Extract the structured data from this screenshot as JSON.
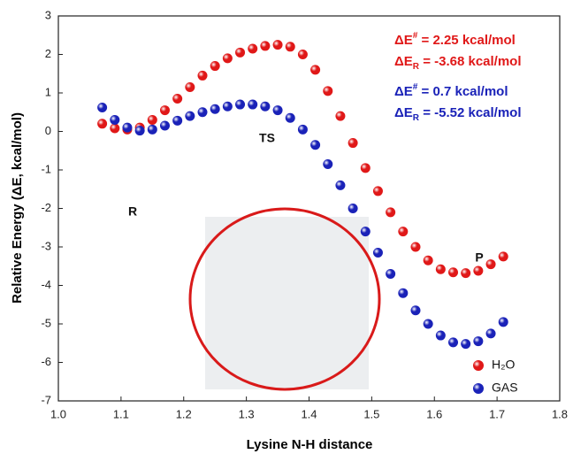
{
  "chart_data": {
    "type": "scatter",
    "x_label": "Lysine N-H distance",
    "y_label": "Relative Energy (ΔE, kcal/mol)",
    "xlim": [
      1.0,
      1.8
    ],
    "ylim": [
      -7,
      3
    ],
    "xticks": [
      {
        "value": 1.0,
        "label": "1.0"
      },
      1.1,
      1.2,
      1.3,
      1.4,
      1.5,
      1.6,
      1.7,
      1.8
    ],
    "yticks": [
      -7,
      -6,
      -5,
      -4,
      -3,
      -2,
      -1,
      0,
      1,
      2,
      3
    ],
    "legend": "lower right",
    "series": [
      {
        "name": "H₂O",
        "color": "#e01818",
        "x": [
          1.07,
          1.09,
          1.11,
          1.13,
          1.15,
          1.17,
          1.19,
          1.21,
          1.23,
          1.25,
          1.27,
          1.29,
          1.31,
          1.33,
          1.35,
          1.37,
          1.39,
          1.41,
          1.43,
          1.45,
          1.47,
          1.49,
          1.51,
          1.53,
          1.55,
          1.57,
          1.59,
          1.61,
          1.63,
          1.65,
          1.67,
          1.69,
          1.71
        ],
        "values": [
          0.2,
          0.08,
          0.05,
          0.1,
          0.3,
          0.55,
          0.85,
          1.15,
          1.45,
          1.7,
          1.9,
          2.05,
          2.15,
          2.22,
          2.25,
          2.2,
          2.0,
          1.6,
          1.05,
          0.4,
          -0.3,
          -0.95,
          -1.55,
          -2.1,
          -2.6,
          -3.0,
          -3.35,
          -3.58,
          -3.66,
          -3.68,
          -3.62,
          -3.45,
          -3.25
        ]
      },
      {
        "name": "GAS",
        "color": "#1a22b8",
        "x": [
          1.07,
          1.09,
          1.11,
          1.13,
          1.15,
          1.17,
          1.19,
          1.21,
          1.23,
          1.25,
          1.27,
          1.29,
          1.31,
          1.33,
          1.35,
          1.37,
          1.39,
          1.41,
          1.43,
          1.45,
          1.47,
          1.49,
          1.51,
          1.53,
          1.55,
          1.57,
          1.59,
          1.61,
          1.63,
          1.65,
          1.67,
          1.69,
          1.71
        ],
        "values": [
          0.62,
          0.3,
          0.1,
          0.02,
          0.05,
          0.15,
          0.28,
          0.4,
          0.5,
          0.58,
          0.65,
          0.7,
          0.7,
          0.65,
          0.55,
          0.35,
          0.05,
          -0.35,
          -0.85,
          -1.4,
          -2.0,
          -2.6,
          -3.15,
          -3.7,
          -4.2,
          -4.65,
          -5.0,
          -5.3,
          -5.48,
          -5.52,
          -5.45,
          -5.25,
          -4.95
        ]
      }
    ],
    "annotations": [
      {
        "symbol": "ΔE",
        "superscript": "#",
        "text": " = 2.25 kcal/mol",
        "color": "#e01818"
      },
      {
        "symbol": "ΔE",
        "subscript": "R",
        "text": " = -3.68 kcal/mol",
        "color": "#e01818"
      },
      {
        "symbol": "ΔE",
        "superscript": "#",
        "text": " = 0.7 kcal/mol",
        "color": "#1a22b8"
      },
      {
        "symbol": "ΔE",
        "subscript": "R",
        "text": " = -5.52 kcal/mol",
        "color": "#1a22b8"
      }
    ],
    "state_labels": [
      "R",
      "TS",
      "P"
    ]
  }
}
